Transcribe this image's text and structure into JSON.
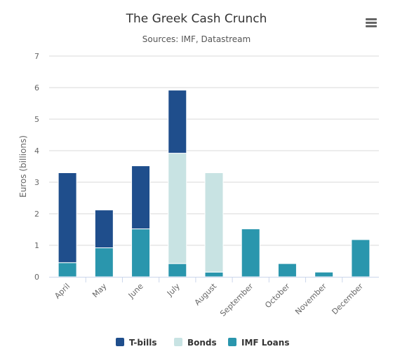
{
  "chart_data": {
    "type": "bar",
    "stacked": true,
    "title": "The Greek Cash Crunch",
    "subtitle": "Sources: IMF, Datastream",
    "xlabel": "",
    "ylabel": "Euros (billions)",
    "ylim": [
      0,
      7
    ],
    "yticks": [
      0,
      1,
      2,
      3,
      4,
      5,
      6,
      7
    ],
    "grid": true,
    "legend_position": "bottom",
    "categories": [
      "April",
      "May",
      "June",
      "July",
      "August",
      "September",
      "October",
      "November",
      "December"
    ],
    "series": [
      {
        "name": "T-bills",
        "color": "#1f4e8c",
        "values": [
          2.85,
          1.2,
          2.0,
          2.0,
          0,
          0,
          0,
          0,
          0
        ]
      },
      {
        "name": "Bonds",
        "color": "#c8e3e3",
        "values": [
          0,
          0,
          0,
          3.5,
          3.15,
          0,
          0,
          0,
          0
        ]
      },
      {
        "name": "IMF Loans",
        "color": "#2a96ad",
        "values": [
          0.45,
          0.92,
          1.52,
          0.42,
          0.15,
          1.52,
          0.42,
          0.15,
          1.18
        ]
      }
    ]
  },
  "ui": {
    "menu_icon": "hamburger-menu-icon"
  }
}
